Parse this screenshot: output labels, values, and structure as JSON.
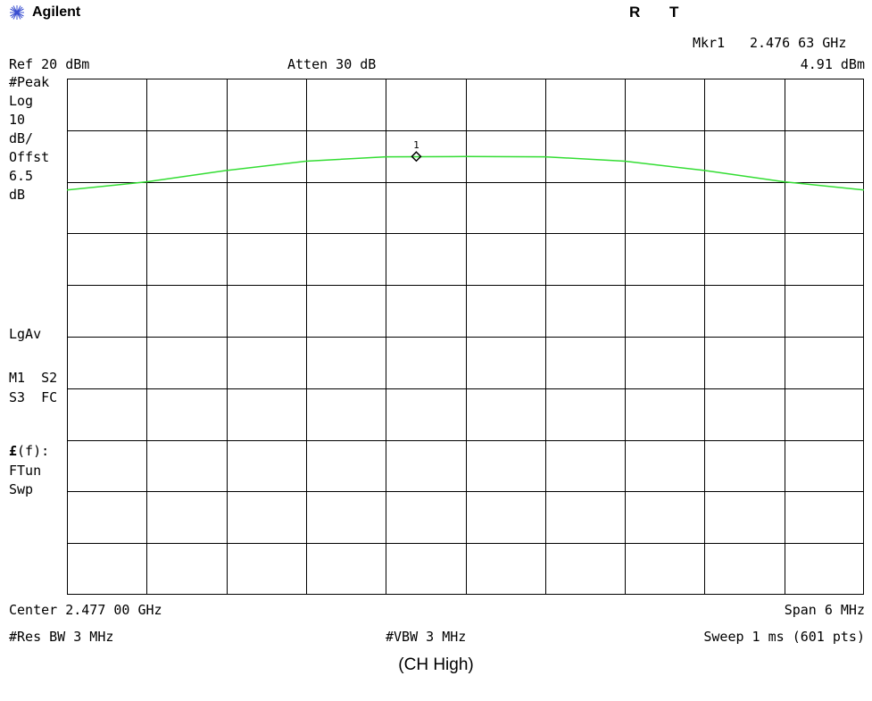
{
  "brand": {
    "name": "Agilent",
    "icon": "starburst-logo-icon"
  },
  "status": {
    "r": "R",
    "t": "T"
  },
  "marker": {
    "readout_label": "Mkr1",
    "readout_freq": "2.476 63 GHz",
    "readout_amp": "4.91 dBm",
    "label": "1"
  },
  "header": {
    "ref": "Ref 20 dBm",
    "atten": "Atten 30 dB"
  },
  "side_labels": {
    "peak": "#Peak",
    "log": "Log",
    "scale_val": "10",
    "scale_unit": "dB/",
    "offst": "Offst",
    "offst_val": "6.5",
    "offst_unit": "dB",
    "lgav": "LgAv",
    "m1s2": "M1  S2",
    "s3fc": "S3  FC",
    "ff_prefix": "£",
    "ff_suffix": "(f):",
    "ftun": "FTun",
    "swp": "Swp"
  },
  "footer": {
    "center": "Center 2.477 00 GHz",
    "span": "Span 6 MHz",
    "rbw": "#Res BW 3 MHz",
    "vbw": "#VBW 3 MHz",
    "sweep": "Sweep 1 ms (601 pts)"
  },
  "caption": "(CH High)",
  "colors": {
    "trace": "#33dd33",
    "grid": "#000000",
    "background": "#ffffff"
  },
  "chart_data": {
    "type": "line",
    "x_unit": "GHz",
    "y_unit": "dBm",
    "xlim": [
      2.474,
      2.48
    ],
    "ylim": [
      -80,
      20
    ],
    "y_divisions": 10,
    "x_divisions": 10,
    "grid": true,
    "series": [
      {
        "x": [
          2.474,
          2.4746,
          2.4752,
          2.4758,
          2.4764,
          2.477,
          2.4776,
          2.4782,
          2.4788,
          2.4794,
          2.48
        ],
        "y": [
          -1.6,
          0.0,
          2.2,
          4.0,
          4.85,
          4.9,
          4.85,
          4.0,
          2.2,
          0.0,
          -1.6
        ]
      }
    ],
    "marker": {
      "x": 2.47663,
      "y": 4.91
    }
  }
}
